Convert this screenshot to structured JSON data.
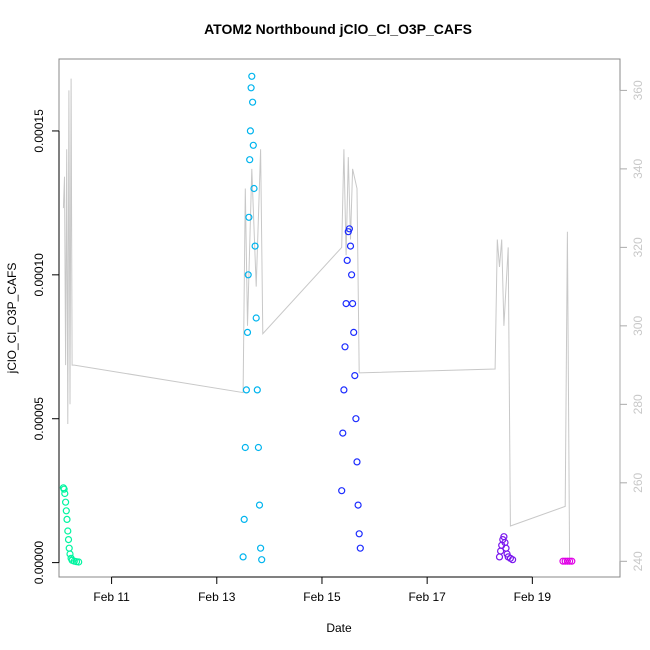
{
  "chart_data": {
    "type": "scatter",
    "title": "ATOM2 Northbound jClO_Cl_O3P_CAFS",
    "xlabel": "Date",
    "ylabel": "jClO_Cl_O3P_CAFS",
    "xlim": [
      "2017-02-10T00:00",
      "2017-02-20T16:00"
    ],
    "ylim": [
      -5e-06,
      0.000175
    ],
    "y2lim": [
      236,
      368
    ],
    "grid": false,
    "legend": "none",
    "x_ticks": [
      {
        "date": "2017-02-11T00:00",
        "label": "Feb 11"
      },
      {
        "date": "2017-02-13T00:00",
        "label": "Feb 13"
      },
      {
        "date": "2017-02-15T00:00",
        "label": "Feb 15"
      },
      {
        "date": "2017-02-17T00:00",
        "label": "Feb 17"
      },
      {
        "date": "2017-02-19T00:00",
        "label": "Feb 19"
      }
    ],
    "y_ticks": [
      {
        "value": 0.0,
        "label": "0.00000"
      },
      {
        "value": 5e-05,
        "label": "0.00005"
      },
      {
        "value": 0.0001,
        "label": "0.00010"
      },
      {
        "value": 0.00015,
        "label": "0.00015"
      }
    ],
    "y2_ticks": [
      {
        "value": 240,
        "label": "240"
      },
      {
        "value": 260,
        "label": "260"
      },
      {
        "value": 280,
        "label": "280"
      },
      {
        "value": 300,
        "label": "300"
      },
      {
        "value": 320,
        "label": "320"
      },
      {
        "value": 340,
        "label": "340"
      },
      {
        "value": 360,
        "label": "360"
      }
    ],
    "colors": {
      "flight1": "#00f5a0",
      "flight2": "#00b4ee",
      "flight3": "#1c2cff",
      "flight4": "#7a16ee",
      "flight5": "#e000e6",
      "secondary_line": "#c8c8c8"
    },
    "series": [
      {
        "color_key": "flight1",
        "points": [
          [
            "2017-02-10T02:00",
            2.6e-05
          ],
          [
            "2017-02-10T02:20",
            2.55e-05
          ],
          [
            "2017-02-10T02:40",
            2.4e-05
          ],
          [
            "2017-02-10T03:00",
            2.1e-05
          ],
          [
            "2017-02-10T03:20",
            1.8e-05
          ],
          [
            "2017-02-10T03:40",
            1.5e-05
          ],
          [
            "2017-02-10T04:00",
            1.1e-05
          ],
          [
            "2017-02-10T04:20",
            8e-06
          ],
          [
            "2017-02-10T04:40",
            5e-06
          ],
          [
            "2017-02-10T05:00",
            3e-06
          ],
          [
            "2017-02-10T05:30",
            1.5e-06
          ],
          [
            "2017-02-10T06:00",
            8e-07
          ],
          [
            "2017-02-10T07:00",
            5e-07
          ],
          [
            "2017-02-10T08:00",
            3e-07
          ],
          [
            "2017-02-10T09:00",
            2e-07
          ]
        ]
      },
      {
        "color_key": "flight2",
        "points": [
          [
            "2017-02-13T12:00",
            2e-06
          ],
          [
            "2017-02-13T12:30",
            1.5e-05
          ],
          [
            "2017-02-13T13:00",
            4e-05
          ],
          [
            "2017-02-13T13:30",
            6e-05
          ],
          [
            "2017-02-13T14:00",
            8e-05
          ],
          [
            "2017-02-13T14:20",
            0.0001
          ],
          [
            "2017-02-13T14:40",
            0.00012
          ],
          [
            "2017-02-13T15:00",
            0.00014
          ],
          [
            "2017-02-13T15:20",
            0.00015
          ],
          [
            "2017-02-13T15:40",
            0.000165
          ],
          [
            "2017-02-13T16:00",
            0.000169
          ],
          [
            "2017-02-13T16:20",
            0.00016
          ],
          [
            "2017-02-13T16:40",
            0.000145
          ],
          [
            "2017-02-13T17:00",
            0.00013
          ],
          [
            "2017-02-13T17:30",
            0.00011
          ],
          [
            "2017-02-13T18:00",
            8.5e-05
          ],
          [
            "2017-02-13T18:30",
            6e-05
          ],
          [
            "2017-02-13T19:00",
            4e-05
          ],
          [
            "2017-02-13T19:30",
            2e-05
          ],
          [
            "2017-02-13T20:00",
            5e-06
          ],
          [
            "2017-02-13T20:30",
            1e-06
          ]
        ]
      },
      {
        "color_key": "flight3",
        "points": [
          [
            "2017-02-15T09:00",
            2.5e-05
          ],
          [
            "2017-02-15T09:30",
            4.5e-05
          ],
          [
            "2017-02-15T10:00",
            6e-05
          ],
          [
            "2017-02-15T10:30",
            7.5e-05
          ],
          [
            "2017-02-15T11:00",
            9e-05
          ],
          [
            "2017-02-15T11:30",
            0.000105
          ],
          [
            "2017-02-15T12:00",
            0.000115
          ],
          [
            "2017-02-15T12:30",
            0.000116
          ],
          [
            "2017-02-15T13:00",
            0.00011
          ],
          [
            "2017-02-15T13:30",
            0.0001
          ],
          [
            "2017-02-15T14:00",
            9e-05
          ],
          [
            "2017-02-15T14:30",
            8e-05
          ],
          [
            "2017-02-15T15:00",
            6.5e-05
          ],
          [
            "2017-02-15T15:30",
            5e-05
          ],
          [
            "2017-02-15T16:00",
            3.5e-05
          ],
          [
            "2017-02-15T16:30",
            2e-05
          ],
          [
            "2017-02-15T17:00",
            1e-05
          ],
          [
            "2017-02-15T17:30",
            5e-06
          ]
        ]
      },
      {
        "color_key": "flight4",
        "points": [
          [
            "2017-02-18T09:00",
            2e-06
          ],
          [
            "2017-02-18T09:30",
            4e-06
          ],
          [
            "2017-02-18T10:00",
            6e-06
          ],
          [
            "2017-02-18T10:30",
            8e-06
          ],
          [
            "2017-02-18T11:00",
            9e-06
          ],
          [
            "2017-02-18T11:30",
            7e-06
          ],
          [
            "2017-02-18T12:00",
            5e-06
          ],
          [
            "2017-02-18T12:30",
            3e-06
          ],
          [
            "2017-02-18T13:00",
            2e-06
          ],
          [
            "2017-02-18T14:00",
            1.5e-06
          ],
          [
            "2017-02-18T15:00",
            1e-06
          ]
        ]
      },
      {
        "color_key": "flight5",
        "points": [
          [
            "2017-02-19T14:00",
            5e-07
          ],
          [
            "2017-02-19T15:00",
            5e-07
          ],
          [
            "2017-02-19T16:00",
            5e-07
          ],
          [
            "2017-02-19T17:00",
            5e-07
          ],
          [
            "2017-02-19T18:00",
            5e-07
          ]
        ]
      }
    ],
    "secondary_series": {
      "axis": "right",
      "points": [
        [
          "2017-02-10T02:00",
          330
        ],
        [
          "2017-02-10T02:30",
          338
        ],
        [
          "2017-02-10T03:00",
          290
        ],
        [
          "2017-02-10T03:30",
          345
        ],
        [
          "2017-02-10T04:00",
          275
        ],
        [
          "2017-02-10T04:30",
          360
        ],
        [
          "2017-02-10T05:00",
          280
        ],
        [
          "2017-02-10T05:30",
          363
        ],
        [
          "2017-02-10T06:00",
          290
        ],
        [
          "2017-02-10T07:00",
          290
        ],
        [
          "2017-02-13T12:00",
          283
        ],
        [
          "2017-02-13T13:00",
          335
        ],
        [
          "2017-02-13T14:00",
          300
        ],
        [
          "2017-02-13T16:00",
          340
        ],
        [
          "2017-02-13T18:00",
          310
        ],
        [
          "2017-02-13T20:00",
          345
        ],
        [
          "2017-02-13T21:00",
          298
        ],
        [
          "2017-02-15T09:00",
          320
        ],
        [
          "2017-02-15T10:00",
          345
        ],
        [
          "2017-02-15T11:00",
          318
        ],
        [
          "2017-02-15T12:00",
          343
        ],
        [
          "2017-02-15T13:00",
          322
        ],
        [
          "2017-02-15T14:00",
          340
        ],
        [
          "2017-02-15T16:00",
          335
        ],
        [
          "2017-02-15T17:00",
          288
        ],
        [
          "2017-02-18T07:00",
          289
        ],
        [
          "2017-02-18T08:00",
          322
        ],
        [
          "2017-02-18T09:00",
          315
        ],
        [
          "2017-02-18T10:00",
          322
        ],
        [
          "2017-02-18T11:00",
          300
        ],
        [
          "2017-02-18T13:00",
          320
        ],
        [
          "2017-02-18T14:00",
          249
        ],
        [
          "2017-02-19T15:00",
          254
        ],
        [
          "2017-02-19T16:00",
          324
        ],
        [
          "2017-02-19T17:00",
          240
        ]
      ]
    }
  }
}
